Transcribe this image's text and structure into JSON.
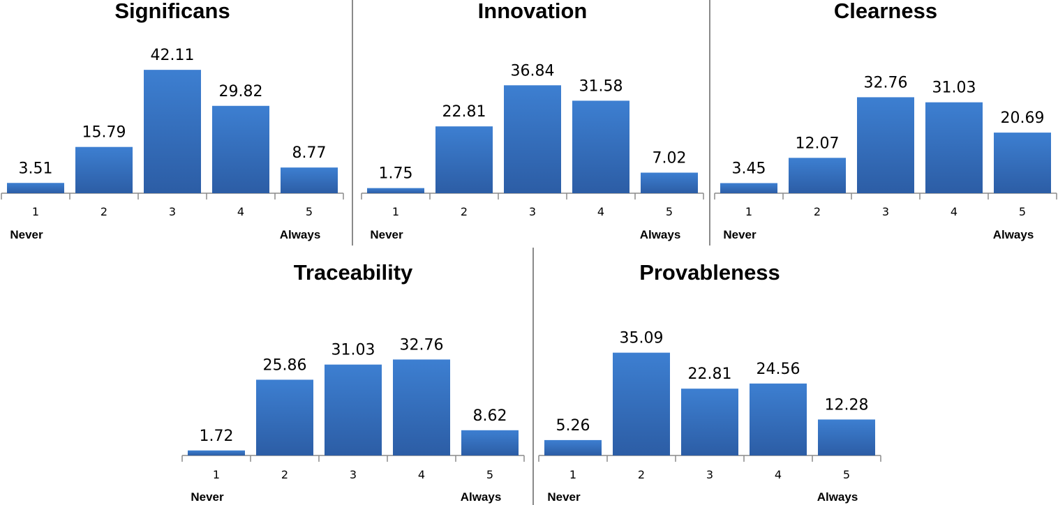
{
  "colors": {
    "bar_top": "#3d7fd1",
    "bar_bottom": "#2c5da5",
    "axis": "#8a8a8a",
    "divider": "#8a8a8a"
  },
  "chart_data": [
    {
      "type": "bar",
      "title": "Significans",
      "categories": [
        "1",
        "2",
        "3",
        "4",
        "5"
      ],
      "values": [
        3.51,
        15.79,
        42.11,
        29.82,
        8.77
      ],
      "value_labels": [
        "3.51",
        "15.79",
        "42.11",
        "29.82",
        "8.77"
      ],
      "low_label": "Never",
      "high_label": "Always",
      "ylim": [
        0,
        45
      ]
    },
    {
      "type": "bar",
      "title": "Innovation",
      "categories": [
        "1",
        "2",
        "3",
        "4",
        "5"
      ],
      "values": [
        1.75,
        22.81,
        36.84,
        31.58,
        7.02
      ],
      "value_labels": [
        "1.75",
        "22.81",
        "36.84",
        "31.58",
        "7.02"
      ],
      "low_label": "Never",
      "high_label": "Always",
      "ylim": [
        0,
        45
      ]
    },
    {
      "type": "bar",
      "title": "Clearness",
      "categories": [
        "1",
        "2",
        "3",
        "4",
        "5"
      ],
      "values": [
        3.45,
        12.07,
        32.76,
        31.03,
        20.69
      ],
      "value_labels": [
        "3.45",
        "12.07",
        "32.76",
        "31.03",
        "20.69"
      ],
      "low_label": "Never",
      "high_label": "Always",
      "ylim": [
        0,
        45
      ]
    },
    {
      "type": "bar",
      "title": "Traceability",
      "categories": [
        "1",
        "2",
        "3",
        "4",
        "5"
      ],
      "values": [
        1.72,
        25.86,
        31.03,
        32.76,
        8.62
      ],
      "value_labels": [
        "1.72",
        "25.86",
        "31.03",
        "32.76",
        "8.62"
      ],
      "low_label": "Never",
      "high_label": "Always",
      "ylim": [
        0,
        45
      ]
    },
    {
      "type": "bar",
      "title": "Provableness",
      "categories": [
        "1",
        "2",
        "3",
        "4",
        "5"
      ],
      "values": [
        5.26,
        35.09,
        22.81,
        24.56,
        12.28
      ],
      "value_labels": [
        "5.26",
        "35.09",
        "22.81",
        "24.56",
        "12.28"
      ],
      "low_label": "Never",
      "high_label": "Always",
      "ylim": [
        0,
        45
      ]
    }
  ]
}
